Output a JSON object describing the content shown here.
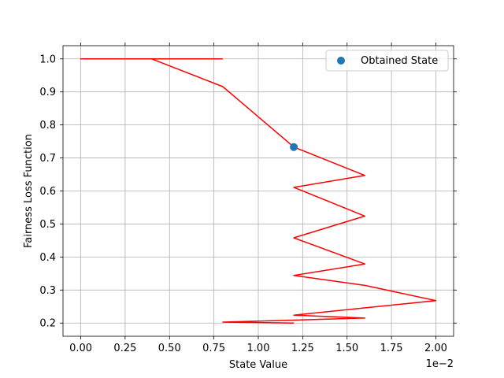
{
  "chart_data": {
    "type": "line",
    "xlabel": "State Value",
    "ylabel": "Fairness Loss Function",
    "x_offset_label": "1e−2",
    "xlim": [
      -0.001,
      0.021
    ],
    "ylim": [
      0.16,
      1.04
    ],
    "x_ticks": [
      0.0,
      0.0025,
      0.005,
      0.0075,
      0.01,
      0.0125,
      0.015,
      0.0175,
      0.02
    ],
    "x_tick_labels": [
      "0.00",
      "0.25",
      "0.50",
      "0.75",
      "1.00",
      "1.25",
      "1.50",
      "1.75",
      "2.00"
    ],
    "y_ticks": [
      0.2,
      0.3,
      0.4,
      0.5,
      0.6,
      0.7,
      0.8,
      0.9,
      1.0
    ],
    "y_tick_labels": [
      "0.2",
      "0.3",
      "0.4",
      "0.5",
      "0.6",
      "0.7",
      "0.8",
      "0.9",
      "1.0"
    ],
    "grid": true,
    "legend_position": "top-right",
    "series": [
      {
        "kind": "line",
        "color": "#ff0000",
        "x": [
          0.008,
          0.0,
          0.004,
          0.008,
          0.012,
          0.016,
          0.012,
          0.016,
          0.012,
          0.016,
          0.012,
          0.016,
          0.02,
          0.012,
          0.016,
          0.008,
          0.012
        ],
        "y": [
          1.0,
          1.0,
          1.0,
          0.916,
          0.733,
          0.647,
          0.611,
          0.524,
          0.458,
          0.379,
          0.344,
          0.314,
          0.268,
          0.224,
          0.215,
          0.203,
          0.2
        ]
      },
      {
        "kind": "scatter",
        "name": "Obtained State",
        "color": "#1f77b4",
        "x": [
          0.012
        ],
        "y": [
          0.733
        ]
      }
    ]
  }
}
